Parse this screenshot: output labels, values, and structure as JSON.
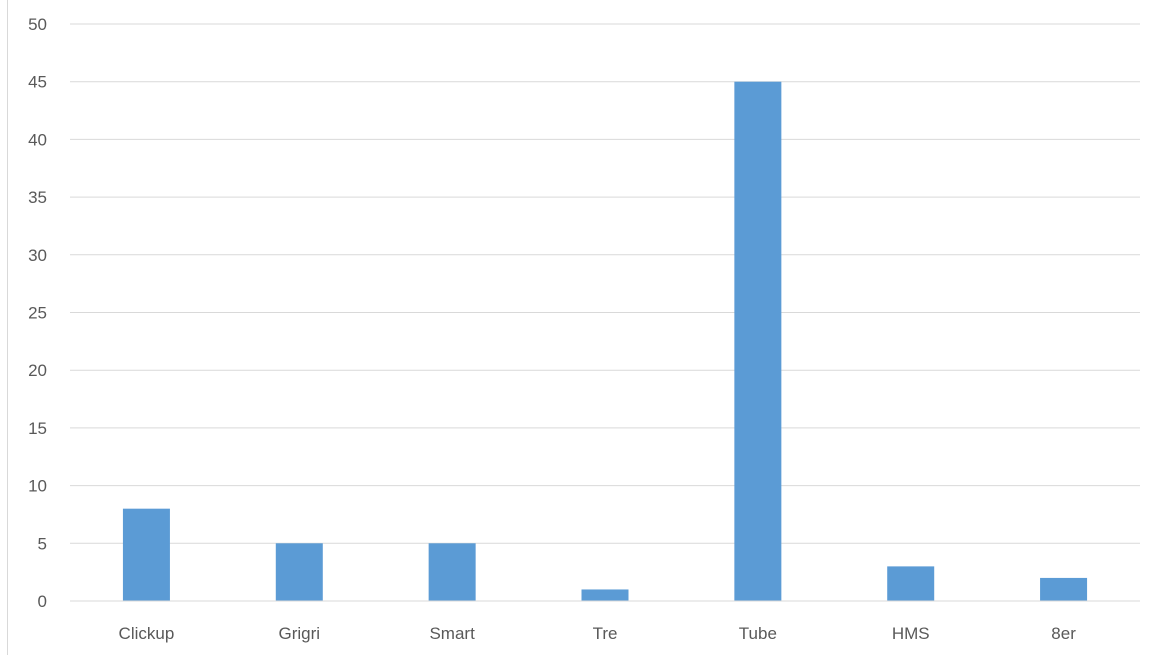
{
  "chart_data": {
    "type": "bar",
    "title": "",
    "xlabel": "",
    "ylabel": "",
    "categories": [
      "Clickup",
      "Grigri",
      "Smart",
      "Tre",
      "Tube",
      "HMS",
      "8er"
    ],
    "values": [
      8,
      5,
      5,
      1,
      45,
      3,
      2
    ],
    "ylim": [
      0,
      50
    ],
    "yticks": [
      0,
      5,
      10,
      15,
      20,
      25,
      30,
      35,
      40,
      45,
      50
    ],
    "grid": true,
    "legend": "none",
    "bar_color": "#5b9bd5",
    "grid_color": "#d9d9d9",
    "text_color": "#595959"
  }
}
